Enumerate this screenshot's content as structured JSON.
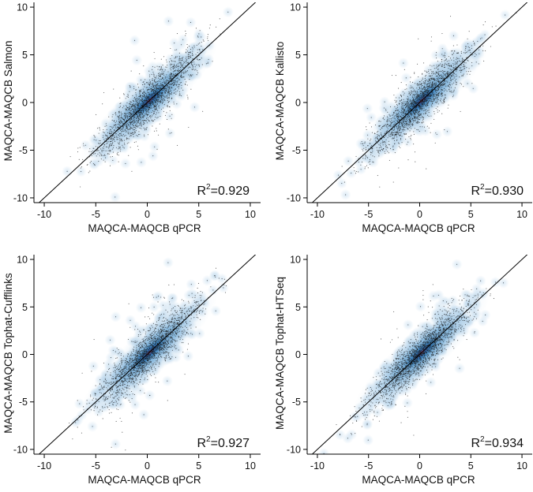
{
  "chart_data": [
    {
      "type": "scatter",
      "xlabel": "MAQCA-MAQCB qPCR",
      "ylabel": "MAQCA-MAQCB Salmon",
      "r2_prefix": "R",
      "r2_sup": "2",
      "r2_value": "=0.929",
      "xlim": [
        -11,
        11
      ],
      "ylim": [
        -10.5,
        10.5
      ],
      "x_ticks": [
        -10,
        -5,
        0,
        5,
        10
      ],
      "y_ticks": [
        -10,
        -5,
        0,
        5,
        10
      ],
      "x_ticklabels": [
        "-10",
        "-5",
        "0",
        "5",
        "10"
      ],
      "y_ticklabels": [
        "-10",
        "-5",
        "0",
        "5",
        "10"
      ],
      "identity_line": [
        -11,
        11
      ],
      "series": [
        {
          "n_points": 1900,
          "mean": 0,
          "sd": 2.5,
          "noise_sd": 1.15,
          "r2": 0.929
        }
      ],
      "grid": false
    },
    {
      "type": "scatter",
      "xlabel": "MAQCA-MAQCB qPCR",
      "ylabel": "MAQCA-MAQCB Kallisto",
      "r2_prefix": "R",
      "r2_sup": "2",
      "r2_value": "=0.930",
      "xlim": [
        -11,
        11
      ],
      "ylim": [
        -10.5,
        10.5
      ],
      "x_ticks": [
        -10,
        -5,
        0,
        5,
        10
      ],
      "y_ticks": [
        -10,
        -5,
        0,
        5,
        10
      ],
      "x_ticklabels": [
        "-10",
        "-5",
        "0",
        "5",
        "10"
      ],
      "y_ticklabels": [
        "-10",
        "-5",
        "0",
        "5",
        "10"
      ],
      "identity_line": [
        -11,
        11
      ],
      "series": [
        {
          "n_points": 1900,
          "mean": 0,
          "sd": 2.5,
          "noise_sd": 1.14,
          "r2": 0.93
        }
      ],
      "grid": false
    },
    {
      "type": "scatter",
      "xlabel": "MAQCA-MAQCB qPCR",
      "ylabel": "MAQCA-MAQCB Tophat-Cufflinks",
      "r2_prefix": "R",
      "r2_sup": "2",
      "r2_value": "=0.927",
      "xlim": [
        -11,
        11
      ],
      "ylim": [
        -10.5,
        10.5
      ],
      "x_ticks": [
        -10,
        -5,
        0,
        5,
        10
      ],
      "y_ticks": [
        -10,
        -5,
        0,
        5,
        10
      ],
      "x_ticklabels": [
        "-10",
        "-5",
        "0",
        "5",
        "10"
      ],
      "y_ticklabels": [
        "-10",
        "-5",
        "0",
        "5",
        "10"
      ],
      "identity_line": [
        -11,
        11
      ],
      "series": [
        {
          "n_points": 1900,
          "mean": 0,
          "sd": 2.5,
          "noise_sd": 1.17,
          "r2": 0.927
        }
      ],
      "grid": false
    },
    {
      "type": "scatter",
      "xlabel": "MAQCA-MAQCB qPCR",
      "ylabel": "MAQCA-MAQCB Tophat-HTSeq",
      "r2_prefix": "R",
      "r2_sup": "2",
      "r2_value": "=0.934",
      "xlim": [
        -11,
        11
      ],
      "ylim": [
        -10.5,
        10.5
      ],
      "x_ticks": [
        -10,
        -5,
        0,
        5,
        10
      ],
      "y_ticks": [
        -10,
        -5,
        0,
        5,
        10
      ],
      "x_ticklabels": [
        "-10",
        "-5",
        "0",
        "5",
        "10"
      ],
      "y_ticklabels": [
        "-10",
        "-5",
        "0",
        "5",
        "10"
      ],
      "identity_line": [
        -11,
        11
      ],
      "series": [
        {
          "n_points": 1900,
          "mean": 0,
          "sd": 2.5,
          "noise_sd": 1.11,
          "r2": 0.934
        }
      ],
      "grid": false
    }
  ],
  "colors": {
    "density_light": "#bcd7ec",
    "density_mid": "#3d8cc7",
    "density_dark": "#1f4f8f",
    "density_core": "#a8354e",
    "points": "#1a1a1a",
    "line": "#000000",
    "axis": "#000000"
  }
}
